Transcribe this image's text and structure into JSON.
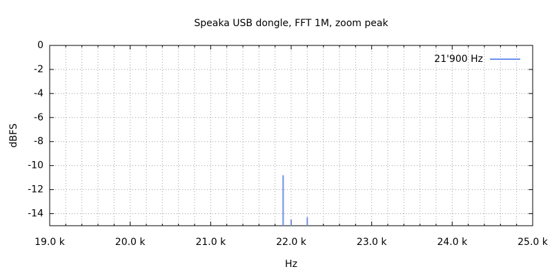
{
  "chart_data": {
    "type": "line",
    "title": "Speaka USB dongle, FFT 1M, zoom peak",
    "x_label": "Hz",
    "y_label": "dBFS",
    "xlim": [
      19000,
      25000
    ],
    "ylim": [
      -15,
      0
    ],
    "xticks": [
      {
        "value": 19000,
        "label": "19.0 k"
      },
      {
        "value": 20000,
        "label": "20.0 k"
      },
      {
        "value": 21000,
        "label": "21.0 k"
      },
      {
        "value": 22000,
        "label": "22.0 k"
      },
      {
        "value": 23000,
        "label": "23.0 k"
      },
      {
        "value": 24000,
        "label": "24.0 k"
      },
      {
        "value": 25000,
        "label": "25.0 k"
      }
    ],
    "yticks": [
      0,
      -2,
      -4,
      -6,
      -8,
      -10,
      -12,
      -14
    ],
    "x_minor_intervals": 5,
    "grid": true,
    "legend": "top-right",
    "x": [
      21900,
      21900,
      21950,
      22000,
      22000,
      22100,
      22200,
      22200
    ],
    "series": [
      {
        "name": "21'900 Hz",
        "color": "#6c8ff0",
        "values": [
          -15,
          -10.8,
          null,
          -15,
          -14.5,
          null,
          -15,
          -14.3
        ]
      }
    ]
  }
}
